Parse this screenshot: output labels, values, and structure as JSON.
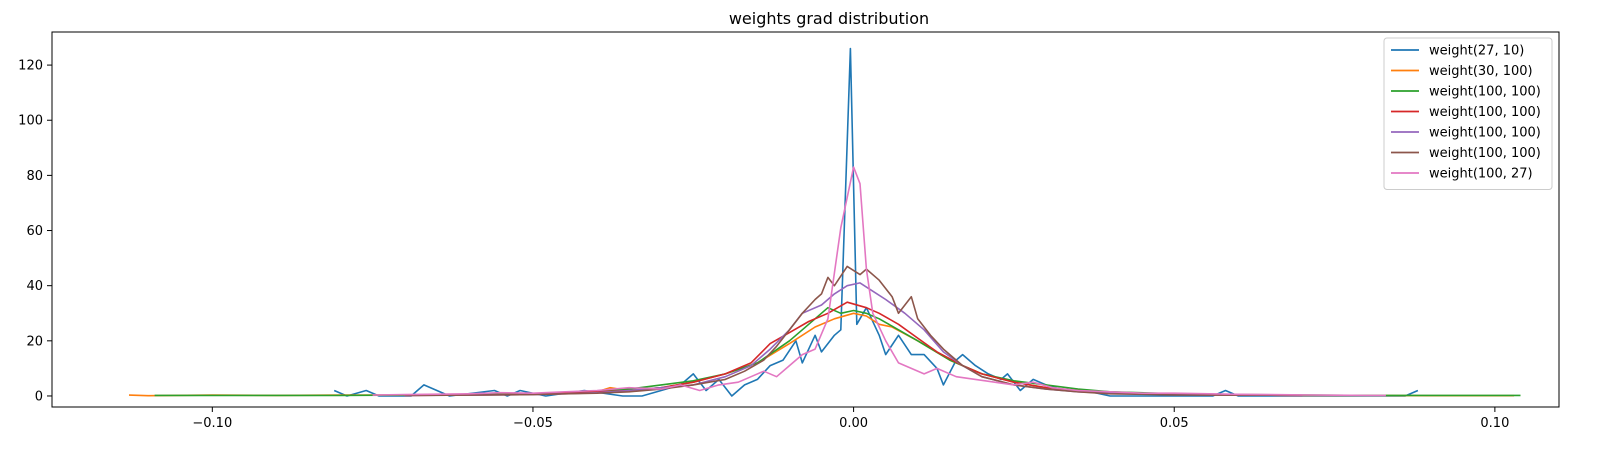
{
  "chart_data": {
    "type": "line",
    "title": "weights grad distribution",
    "xlabel": "",
    "ylabel": "",
    "xlim": [
      -0.125,
      0.11
    ],
    "ylim": [
      -4,
      132
    ],
    "xticks": [
      -0.1,
      -0.05,
      0.0,
      0.05,
      0.1
    ],
    "xtick_labels": [
      "−0.10",
      "−0.05",
      "0.00",
      "0.05",
      "0.10"
    ],
    "yticks": [
      0,
      20,
      40,
      60,
      80,
      100,
      120
    ],
    "ytick_labels": [
      "0",
      "20",
      "40",
      "60",
      "80",
      "100",
      "120"
    ],
    "grid": false,
    "legend_position": "top-right",
    "series": [
      {
        "name": "weight(27, 10)",
        "color": "#1f77b4",
        "points": [
          [
            -0.081,
            2
          ],
          [
            -0.079,
            0
          ],
          [
            -0.076,
            2
          ],
          [
            -0.074,
            0
          ],
          [
            -0.069,
            0
          ],
          [
            -0.067,
            4
          ],
          [
            -0.063,
            0
          ],
          [
            -0.056,
            2
          ],
          [
            -0.054,
            0
          ],
          [
            -0.052,
            2
          ],
          [
            -0.048,
            0
          ],
          [
            -0.042,
            2
          ],
          [
            -0.036,
            0
          ],
          [
            -0.033,
            0
          ],
          [
            -0.03,
            2
          ],
          [
            -0.027,
            4
          ],
          [
            -0.025,
            8
          ],
          [
            -0.023,
            2
          ],
          [
            -0.021,
            6
          ],
          [
            -0.019,
            0
          ],
          [
            -0.017,
            4
          ],
          [
            -0.015,
            6
          ],
          [
            -0.013,
            11
          ],
          [
            -0.011,
            13
          ],
          [
            -0.009,
            20
          ],
          [
            -0.008,
            12
          ],
          [
            -0.006,
            22
          ],
          [
            -0.005,
            16
          ],
          [
            -0.003,
            22
          ],
          [
            -0.002,
            24
          ],
          [
            -0.0005,
            126
          ],
          [
            0.0005,
            26
          ],
          [
            0.002,
            32
          ],
          [
            0.004,
            22
          ],
          [
            0.005,
            15
          ],
          [
            0.007,
            22
          ],
          [
            0.009,
            15
          ],
          [
            0.011,
            15
          ],
          [
            0.013,
            10
          ],
          [
            0.014,
            4
          ],
          [
            0.016,
            13
          ],
          [
            0.017,
            15
          ],
          [
            0.019,
            11
          ],
          [
            0.021,
            8
          ],
          [
            0.023,
            6
          ],
          [
            0.024,
            8
          ],
          [
            0.026,
            2
          ],
          [
            0.028,
            6
          ],
          [
            0.03,
            4
          ],
          [
            0.033,
            2
          ],
          [
            0.036,
            2
          ],
          [
            0.04,
            0
          ],
          [
            0.045,
            0
          ],
          [
            0.05,
            0
          ],
          [
            0.056,
            0
          ],
          [
            0.058,
            2
          ],
          [
            0.06,
            0
          ],
          [
            0.07,
            0
          ],
          [
            0.08,
            0
          ],
          [
            0.086,
            0
          ],
          [
            0.088,
            2
          ]
        ]
      },
      {
        "name": "weight(30, 100)",
        "color": "#ff7f0e",
        "points": [
          [
            -0.113,
            0.3
          ],
          [
            -0.11,
            0.1
          ],
          [
            -0.1,
            0.3
          ],
          [
            -0.09,
            0.2
          ],
          [
            -0.08,
            0.3
          ],
          [
            -0.07,
            0.3
          ],
          [
            -0.06,
            0.5
          ],
          [
            -0.05,
            0.8
          ],
          [
            -0.045,
            1
          ],
          [
            -0.04,
            1.5
          ],
          [
            -0.038,
            3
          ],
          [
            -0.035,
            2
          ],
          [
            -0.03,
            3
          ],
          [
            -0.025,
            5
          ],
          [
            -0.02,
            8
          ],
          [
            -0.015,
            12
          ],
          [
            -0.01,
            19
          ],
          [
            -0.006,
            25
          ],
          [
            -0.003,
            28
          ],
          [
            0.0,
            30
          ],
          [
            0.002,
            29
          ],
          [
            0.004,
            26
          ],
          [
            0.006,
            25
          ],
          [
            0.01,
            20
          ],
          [
            0.015,
            13
          ],
          [
            0.02,
            8
          ],
          [
            0.025,
            5
          ],
          [
            0.03,
            3
          ],
          [
            0.035,
            2
          ],
          [
            0.04,
            1
          ],
          [
            0.05,
            0.6
          ],
          [
            0.06,
            0.3
          ],
          [
            0.07,
            0.2
          ],
          [
            0.08,
            0.2
          ],
          [
            0.09,
            0.1
          ],
          [
            0.1,
            0.1
          ],
          [
            0.103,
            0.1
          ]
        ]
      },
      {
        "name": "weight(100, 100)",
        "color": "#2ca02c",
        "points": [
          [
            -0.109,
            0.2
          ],
          [
            -0.1,
            0.2
          ],
          [
            -0.09,
            0.2
          ],
          [
            -0.08,
            0.2
          ],
          [
            -0.07,
            0.3
          ],
          [
            -0.06,
            0.5
          ],
          [
            -0.05,
            0.8
          ],
          [
            -0.045,
            1
          ],
          [
            -0.04,
            1.8
          ],
          [
            -0.035,
            2.5
          ],
          [
            -0.03,
            4
          ],
          [
            -0.025,
            5.5
          ],
          [
            -0.02,
            8
          ],
          [
            -0.015,
            12
          ],
          [
            -0.01,
            20
          ],
          [
            -0.007,
            26
          ],
          [
            -0.004,
            32
          ],
          [
            -0.002,
            30
          ],
          [
            0.0,
            31
          ],
          [
            0.002,
            30
          ],
          [
            0.004,
            28
          ],
          [
            0.007,
            24
          ],
          [
            0.01,
            20
          ],
          [
            0.015,
            13
          ],
          [
            0.02,
            8
          ],
          [
            0.025,
            5.5
          ],
          [
            0.03,
            4
          ],
          [
            0.035,
            2.5
          ],
          [
            0.04,
            1.5
          ],
          [
            0.05,
            0.8
          ],
          [
            0.06,
            0.5
          ],
          [
            0.07,
            0.3
          ],
          [
            0.08,
            0.2
          ],
          [
            0.09,
            0.2
          ],
          [
            0.1,
            0.2
          ],
          [
            0.104,
            0.2
          ]
        ]
      },
      {
        "name": "weight(100, 100)",
        "color": "#d62728",
        "points": [
          [
            -0.07,
            0.2
          ],
          [
            -0.06,
            0.4
          ],
          [
            -0.05,
            0.6
          ],
          [
            -0.045,
            1
          ],
          [
            -0.04,
            1.5
          ],
          [
            -0.035,
            2
          ],
          [
            -0.03,
            3
          ],
          [
            -0.025,
            5
          ],
          [
            -0.02,
            8
          ],
          [
            -0.016,
            12
          ],
          [
            -0.013,
            19
          ],
          [
            -0.01,
            23
          ],
          [
            -0.007,
            27
          ],
          [
            -0.004,
            30
          ],
          [
            -0.001,
            34
          ],
          [
            0.002,
            32
          ],
          [
            0.004,
            30
          ],
          [
            0.007,
            26
          ],
          [
            0.01,
            21
          ],
          [
            0.013,
            16
          ],
          [
            0.017,
            11
          ],
          [
            0.02,
            8
          ],
          [
            0.025,
            5
          ],
          [
            0.03,
            3
          ],
          [
            0.035,
            2
          ],
          [
            0.04,
            1
          ],
          [
            0.05,
            0.5
          ],
          [
            0.06,
            0.3
          ],
          [
            0.07,
            0.2
          ]
        ]
      },
      {
        "name": "weight(100, 100)",
        "color": "#9467bd",
        "points": [
          [
            -0.07,
            0.2
          ],
          [
            -0.06,
            0.3
          ],
          [
            -0.05,
            0.5
          ],
          [
            -0.045,
            0.8
          ],
          [
            -0.04,
            1.2
          ],
          [
            -0.035,
            2
          ],
          [
            -0.03,
            3
          ],
          [
            -0.025,
            4
          ],
          [
            -0.02,
            7
          ],
          [
            -0.016,
            11
          ],
          [
            -0.013,
            17
          ],
          [
            -0.01,
            24
          ],
          [
            -0.008,
            30
          ],
          [
            -0.005,
            33
          ],
          [
            -0.003,
            37
          ],
          [
            -0.001,
            40
          ],
          [
            0.001,
            41
          ],
          [
            0.003,
            38
          ],
          [
            0.005,
            35
          ],
          [
            0.008,
            30
          ],
          [
            0.011,
            24
          ],
          [
            0.014,
            16
          ],
          [
            0.017,
            11
          ],
          [
            0.02,
            7
          ],
          [
            0.025,
            4
          ],
          [
            0.03,
            2.5
          ],
          [
            0.035,
            1.5
          ],
          [
            0.04,
            1
          ],
          [
            0.05,
            0.5
          ],
          [
            0.06,
            0.3
          ],
          [
            0.07,
            0.2
          ]
        ]
      },
      {
        "name": "weight(100, 100)",
        "color": "#8c564b",
        "points": [
          [
            -0.07,
            0.2
          ],
          [
            -0.06,
            0.3
          ],
          [
            -0.05,
            0.5
          ],
          [
            -0.045,
            0.8
          ],
          [
            -0.04,
            1
          ],
          [
            -0.035,
            1.5
          ],
          [
            -0.03,
            2.5
          ],
          [
            -0.025,
            4
          ],
          [
            -0.02,
            6
          ],
          [
            -0.017,
            9
          ],
          [
            -0.014,
            13
          ],
          [
            -0.012,
            18
          ],
          [
            -0.01,
            24
          ],
          [
            -0.008,
            30
          ],
          [
            -0.006,
            35
          ],
          [
            -0.005,
            37
          ],
          [
            -0.004,
            43
          ],
          [
            -0.003,
            40
          ],
          [
            -0.001,
            47
          ],
          [
            0.001,
            44
          ],
          [
            0.002,
            46
          ],
          [
            0.004,
            42
          ],
          [
            0.006,
            36
          ],
          [
            0.007,
            30
          ],
          [
            0.009,
            36
          ],
          [
            0.01,
            28
          ],
          [
            0.012,
            22
          ],
          [
            0.014,
            17
          ],
          [
            0.017,
            11
          ],
          [
            0.02,
            7
          ],
          [
            0.025,
            4
          ],
          [
            0.03,
            2.5
          ],
          [
            0.035,
            1.5
          ],
          [
            0.04,
            0.8
          ],
          [
            0.05,
            0.4
          ],
          [
            0.06,
            0.3
          ],
          [
            0.07,
            0.2
          ]
        ]
      },
      {
        "name": "weight(100, 27)",
        "color": "#e377c2",
        "points": [
          [
            -0.075,
            0.3
          ],
          [
            -0.07,
            0.5
          ],
          [
            -0.06,
            0.8
          ],
          [
            -0.055,
            1.2
          ],
          [
            -0.05,
            1
          ],
          [
            -0.045,
            1.5
          ],
          [
            -0.04,
            2
          ],
          [
            -0.035,
            3
          ],
          [
            -0.03,
            2.5
          ],
          [
            -0.027,
            4
          ],
          [
            -0.024,
            2
          ],
          [
            -0.021,
            4
          ],
          [
            -0.018,
            5
          ],
          [
            -0.016,
            7
          ],
          [
            -0.014,
            9
          ],
          [
            -0.012,
            7
          ],
          [
            -0.01,
            11
          ],
          [
            -0.008,
            15
          ],
          [
            -0.006,
            17
          ],
          [
            -0.004,
            28
          ],
          [
            -0.002,
            61
          ],
          [
            -0.001,
            72
          ],
          [
            0.0,
            83
          ],
          [
            0.001,
            77
          ],
          [
            0.002,
            46
          ],
          [
            0.003,
            30
          ],
          [
            0.005,
            20
          ],
          [
            0.007,
            12
          ],
          [
            0.009,
            10
          ],
          [
            0.011,
            8
          ],
          [
            0.013,
            10
          ],
          [
            0.016,
            7
          ],
          [
            0.019,
            6
          ],
          [
            0.022,
            5
          ],
          [
            0.025,
            4
          ],
          [
            0.028,
            5
          ],
          [
            0.031,
            3
          ],
          [
            0.035,
            2
          ],
          [
            0.04,
            1.5
          ],
          [
            0.045,
            1
          ],
          [
            0.05,
            1
          ],
          [
            0.06,
            0.6
          ],
          [
            0.07,
            0.4
          ],
          [
            0.08,
            0.2
          ],
          [
            0.083,
            0.2
          ]
        ]
      }
    ]
  }
}
